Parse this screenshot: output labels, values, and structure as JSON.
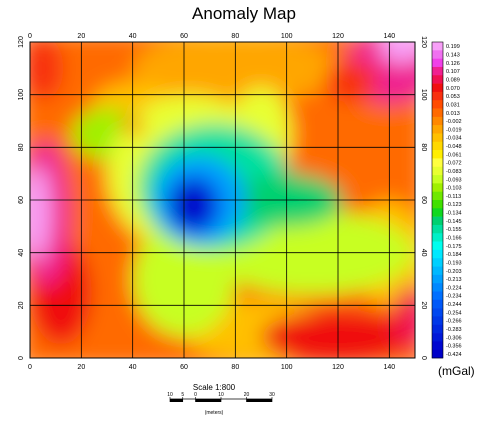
{
  "chart_data": {
    "type": "heatmap",
    "title": "Anomaly Map",
    "xlim": [
      0,
      150
    ],
    "ylim": [
      0,
      120
    ],
    "x_ticks": [
      0,
      20,
      40,
      60,
      80,
      100,
      120,
      140
    ],
    "y_ticks": [
      0,
      20,
      40,
      60,
      80,
      100,
      120
    ],
    "grid": true,
    "colorbar": {
      "unit": "(mGal)",
      "placement": "right",
      "levels": [
        "0.199",
        "0.143",
        "0.126",
        "0.107",
        "0.089",
        "0.070",
        "0.053",
        "0.031",
        "0.013",
        "-0.002",
        "-0.019",
        "-0.034",
        "-0.048",
        "-0.061",
        "-0.072",
        "-0.083",
        "-0.093",
        "-0.103",
        "-0.113",
        "-0.123",
        "-0.134",
        "-0.145",
        "-0.155",
        "-0.166",
        "-0.175",
        "-0.184",
        "-0.193",
        "-0.203",
        "-0.213",
        "-0.224",
        "-0.234",
        "-0.244",
        "-0.254",
        "-0.266",
        "-0.283",
        "-0.306",
        "-0.356",
        "-0.424"
      ],
      "colors": [
        "#f8a0f8",
        "#f070f0",
        "#f040e8",
        "#f02090",
        "#f01050",
        "#f01010",
        "#f83010",
        "#ff4c00",
        "#ff6a00",
        "#ff8800",
        "#ffa600",
        "#ffc000",
        "#ffd800",
        "#ffee00",
        "#ffff40",
        "#e8ff30",
        "#c8ff20",
        "#a0f000",
        "#70e800",
        "#40e000",
        "#10d820",
        "#00d070",
        "#00e0a0",
        "#00f0c8",
        "#00ffee",
        "#00e8ff",
        "#00d0ff",
        "#00b8ff",
        "#00a0ff",
        "#0088ff",
        "#0070ff",
        "#0058f8",
        "#0048f0",
        "#0038e8",
        "#0028e0",
        "#0018d8",
        "#0008d0",
        "#0000c8"
      ]
    },
    "anomaly_features": [
      {
        "x": 62,
        "y": 58,
        "value": "-0.424",
        "note": "strong negative low (blue core)"
      },
      {
        "x": 5,
        "y": 55,
        "value": "0.199",
        "note": "positive high, west edge (magenta)"
      },
      {
        "x": 145,
        "y": 115,
        "value": "0.199",
        "note": "positive high, NE corner (pink)"
      },
      {
        "x": 12,
        "y": 25,
        "value": "0.070",
        "note": "red high, SW"
      },
      {
        "x": 125,
        "y": 10,
        "value": "0.070",
        "note": "red high, SE"
      },
      {
        "x": 25,
        "y": 85,
        "value": "-0.134",
        "note": "green low, NW"
      }
    ]
  },
  "scale_bar": {
    "label": "Scale 1:800",
    "ticks": [
      "10",
      "5",
      "0",
      "10",
      "20",
      "30"
    ],
    "unit": "(meters)"
  }
}
